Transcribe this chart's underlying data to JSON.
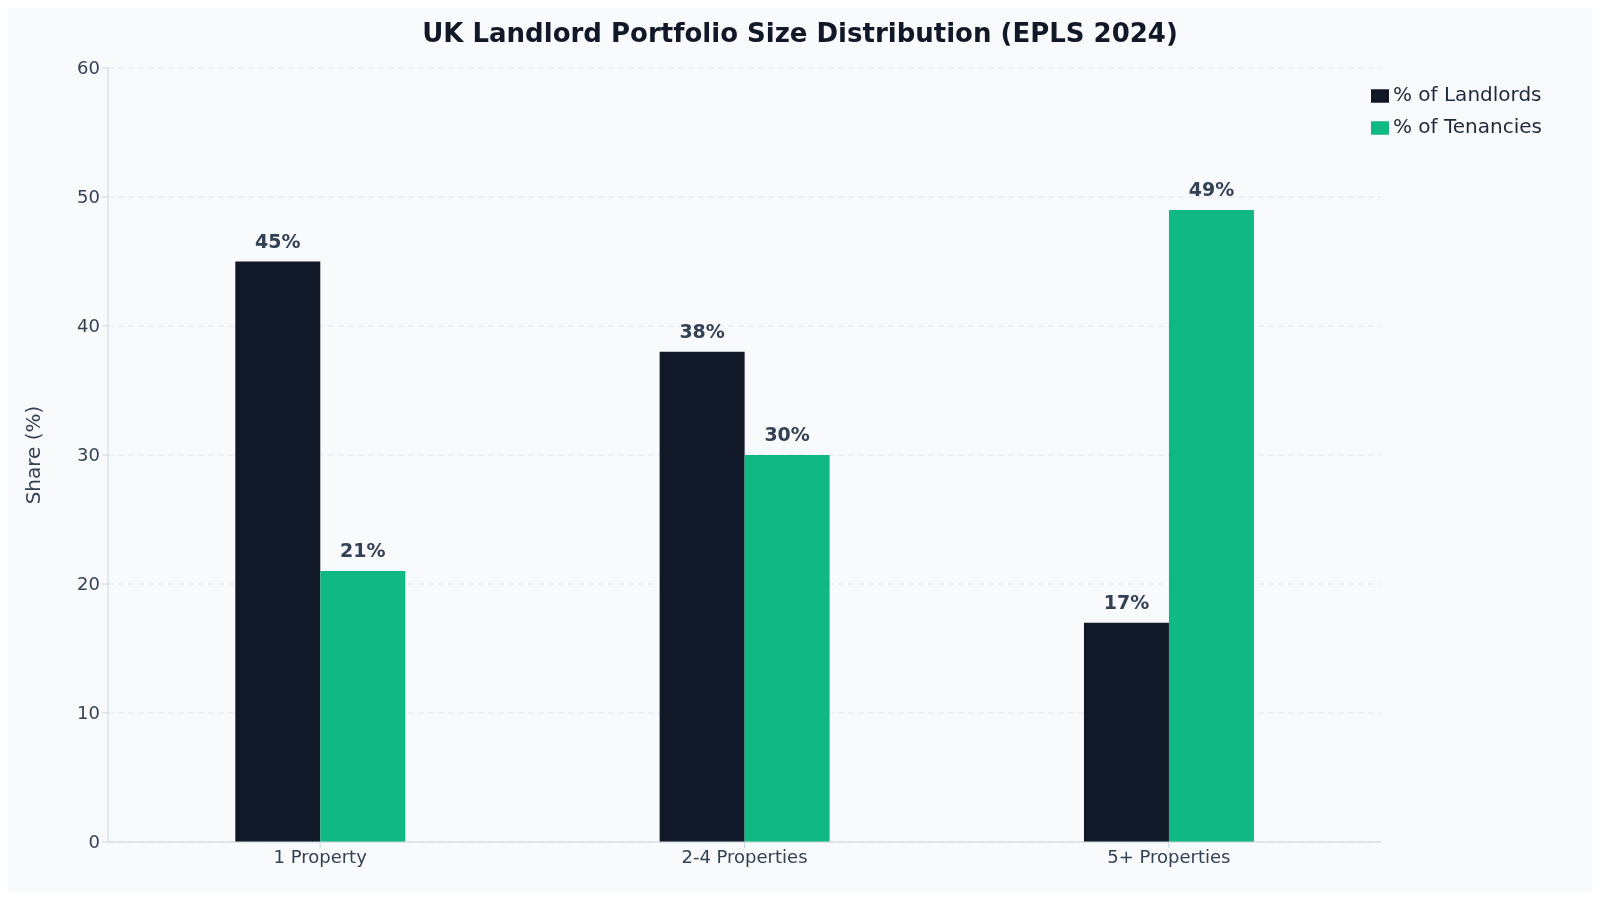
{
  "chart_data": {
    "type": "bar",
    "title": "UK Landlord Portfolio Size Distribution (EPLS 2024)",
    "ylabel": "Share (%)",
    "categories": [
      "1 Property",
      "2-4 Properties",
      "5+ Properties"
    ],
    "series": [
      {
        "name": "% of Landlords",
        "color": "#111827",
        "values": [
          45,
          38,
          17
        ],
        "value_labels": [
          "45%",
          "38%",
          "17%"
        ]
      },
      {
        "name": "% of Tenancies",
        "color": "#10b981",
        "values": [
          21,
          30,
          49
        ],
        "value_labels": [
          "21%",
          "30%",
          "49%"
        ]
      }
    ],
    "ylim": [
      0,
      60
    ],
    "yticks": [
      0,
      10,
      20,
      30,
      40,
      50,
      60
    ],
    "grid": "y",
    "legend": "top right"
  }
}
